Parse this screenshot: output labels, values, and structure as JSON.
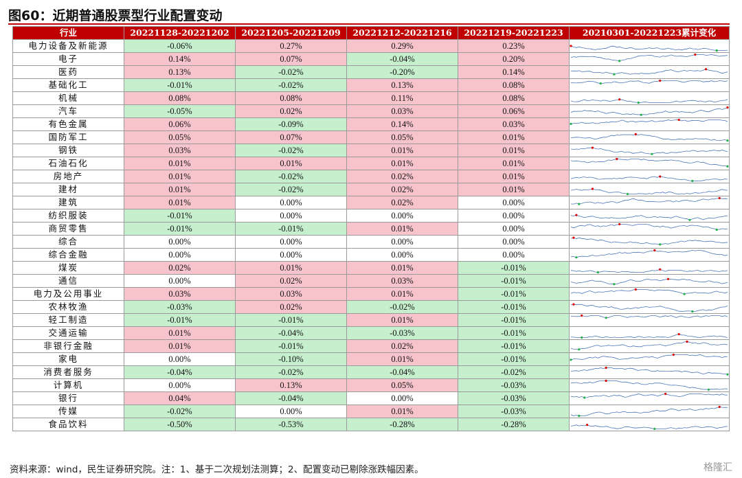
{
  "title": "图60：近期普通股票型行业配置变动",
  "headers": [
    "行业",
    "20221128-20221202",
    "20221205-20221209",
    "20221212-20221216",
    "20221219-20221223",
    "20210301-20221223累计变化"
  ],
  "colors": {
    "header_bg": "#c00000",
    "positive_bg": "#f7c4cc",
    "negative_bg": "#c6efce",
    "spark_line": "#4a74b8",
    "spark_max": "#e00000",
    "spark_min": "#22b04b"
  },
  "rows": [
    {
      "industry": "电力设备及新能源",
      "values": [
        "-0.06%",
        "0.27%",
        "0.29%",
        "0.23%"
      ]
    },
    {
      "industry": "电子",
      "values": [
        "0.14%",
        "0.07%",
        "-0.04%",
        "0.20%"
      ]
    },
    {
      "industry": "医药",
      "values": [
        "0.13%",
        "-0.02%",
        "-0.20%",
        "0.14%"
      ]
    },
    {
      "industry": "基础化工",
      "values": [
        "-0.01%",
        "-0.02%",
        "0.13%",
        "0.08%"
      ]
    },
    {
      "industry": "机械",
      "values": [
        "0.08%",
        "0.08%",
        "0.11%",
        "0.08%"
      ]
    },
    {
      "industry": "汽车",
      "values": [
        "-0.05%",
        "0.02%",
        "0.03%",
        "0.06%"
      ]
    },
    {
      "industry": "有色金属",
      "values": [
        "0.06%",
        "-0.09%",
        "0.14%",
        "0.03%"
      ]
    },
    {
      "industry": "国防军工",
      "values": [
        "0.05%",
        "0.07%",
        "0.05%",
        "0.01%"
      ]
    },
    {
      "industry": "钢铁",
      "values": [
        "0.03%",
        "-0.02%",
        "0.01%",
        "0.01%"
      ]
    },
    {
      "industry": "石油石化",
      "values": [
        "0.01%",
        "0.01%",
        "0.01%",
        "0.01%"
      ]
    },
    {
      "industry": "房地产",
      "values": [
        "0.01%",
        "-0.02%",
        "0.02%",
        "0.01%"
      ]
    },
    {
      "industry": "建材",
      "values": [
        "0.01%",
        "-0.02%",
        "0.02%",
        "0.01%"
      ]
    },
    {
      "industry": "建筑",
      "values": [
        "0.01%",
        "0.00%",
        "0.02%",
        "0.00%"
      ]
    },
    {
      "industry": "纺织服装",
      "values": [
        "-0.01%",
        "0.00%",
        "0.00%",
        "0.00%"
      ]
    },
    {
      "industry": "商贸零售",
      "values": [
        "-0.01%",
        "-0.01%",
        "0.01%",
        "0.00%"
      ]
    },
    {
      "industry": "综合",
      "values": [
        "0.00%",
        "0.00%",
        "0.00%",
        "0.00%"
      ]
    },
    {
      "industry": "综合金融",
      "values": [
        "0.00%",
        "0.00%",
        "0.00%",
        "0.00%"
      ]
    },
    {
      "industry": "煤炭",
      "values": [
        "0.02%",
        "0.01%",
        "0.01%",
        "-0.01%"
      ]
    },
    {
      "industry": "通信",
      "values": [
        "0.00%",
        "0.02%",
        "0.03%",
        "-0.01%"
      ]
    },
    {
      "industry": "电力及公用事业",
      "values": [
        "0.03%",
        "0.03%",
        "0.01%",
        "-0.01%"
      ]
    },
    {
      "industry": "农林牧渔",
      "values": [
        "-0.03%",
        "0.02%",
        "-0.02%",
        "-0.01%"
      ]
    },
    {
      "industry": "轻工制造",
      "values": [
        "-0.01%",
        "-0.01%",
        "0.01%",
        "-0.01%"
      ]
    },
    {
      "industry": "交通运输",
      "values": [
        "0.01%",
        "-0.04%",
        "-0.03%",
        "-0.01%"
      ]
    },
    {
      "industry": "非银行金融",
      "values": [
        "0.01%",
        "-0.01%",
        "0.02%",
        "-0.01%"
      ]
    },
    {
      "industry": "家电",
      "values": [
        "0.00%",
        "-0.10%",
        "0.01%",
        "-0.01%"
      ]
    },
    {
      "industry": "消费者服务",
      "values": [
        "-0.04%",
        "-0.02%",
        "-0.04%",
        "-0.02%"
      ]
    },
    {
      "industry": "计算机",
      "values": [
        "0.00%",
        "0.13%",
        "0.05%",
        "-0.03%"
      ]
    },
    {
      "industry": "银行",
      "values": [
        "0.04%",
        "-0.04%",
        "0.00%",
        "-0.03%"
      ]
    },
    {
      "industry": "传媒",
      "values": [
        "-0.02%",
        "0.00%",
        "0.01%",
        "-0.03%"
      ]
    },
    {
      "industry": "食品饮料",
      "values": [
        "-0.50%",
        "-0.53%",
        "-0.28%",
        "-0.28%"
      ]
    }
  ],
  "footnote": "资料来源：wind，民生证券研究院。注：1、基于二次规划法测算；2、配置变动已剔除涨跌幅因素。",
  "watermark": "格隆汇"
}
